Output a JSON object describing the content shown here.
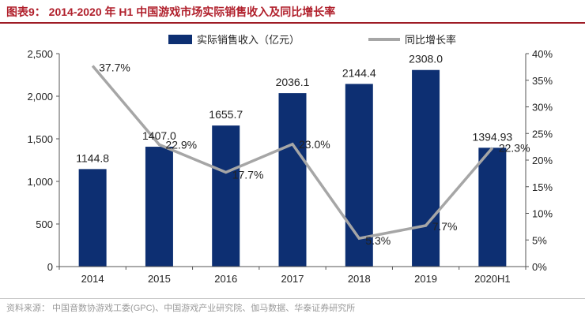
{
  "figure": {
    "title": "图表9： 2014-2020 年 H1 中国游戏市场实际销售收入及同比增长率",
    "source": "资料来源： 中国音数协游戏工委(GPC)、中国游戏产业研究院、伽马数据、华泰证券研究所"
  },
  "chart_data": {
    "type": "bar",
    "categories": [
      "2014",
      "2015",
      "2016",
      "2017",
      "2018",
      "2019",
      "2020H1"
    ],
    "series": [
      {
        "name": "实际销售收入（亿元）",
        "type": "bar",
        "axis": "left",
        "color": "#0d2f72",
        "values": [
          1144.8,
          1407.0,
          1655.7,
          2036.1,
          2144.4,
          2308.0,
          1394.93
        ],
        "labels": [
          "1144.8",
          "1407.0",
          "1655.7",
          "2036.1",
          "2144.4",
          "2308.0",
          "1394.93"
        ]
      },
      {
        "name": "同比增长率",
        "type": "line",
        "axis": "right",
        "color": "#a6a6a6",
        "values": [
          37.7,
          22.9,
          17.7,
          23.0,
          5.3,
          7.7,
          22.3
        ],
        "labels": [
          "37.7%",
          "22.9%",
          "17.7%",
          "23.0%",
          "5.3%",
          "7.7%",
          "22.3%"
        ]
      }
    ],
    "y_left": {
      "ylim": [
        0,
        2500
      ],
      "ticks": [
        0,
        500,
        1000,
        1500,
        2000,
        2500
      ],
      "tick_labels": [
        "0",
        "500",
        "1,000",
        "1,500",
        "2,000",
        "2,500"
      ]
    },
    "y_right": {
      "ylim": [
        0,
        40
      ],
      "ticks": [
        0,
        5,
        10,
        15,
        20,
        25,
        30,
        35,
        40
      ],
      "tick_labels": [
        "0%",
        "5%",
        "10%",
        "15%",
        "20%",
        "25%",
        "30%",
        "35%",
        "40%"
      ]
    },
    "grid": false,
    "legend_position": "top"
  }
}
